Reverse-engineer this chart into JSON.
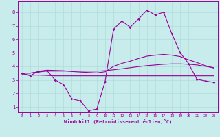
{
  "xlabel": "Windchill (Refroidissement éolien,°C)",
  "bg_color": "#c8ecec",
  "line_color": "#990099",
  "grid_color": "#b0ddd8",
  "xlim": [
    -0.5,
    23.5
  ],
  "ylim": [
    0.6,
    8.8
  ],
  "xticks": [
    0,
    1,
    2,
    3,
    4,
    5,
    6,
    7,
    8,
    9,
    10,
    11,
    12,
    13,
    14,
    15,
    16,
    17,
    18,
    19,
    20,
    21,
    22,
    23
  ],
  "yticks": [
    1,
    2,
    3,
    4,
    5,
    6,
    7,
    8
  ],
  "line_jagged_x": [
    0,
    1,
    2,
    3,
    4,
    5,
    6,
    7,
    8,
    9,
    10,
    11,
    12,
    13,
    14,
    15,
    16,
    17,
    18,
    19,
    20,
    21,
    22,
    23
  ],
  "line_jagged_y": [
    3.5,
    3.3,
    3.65,
    3.7,
    3.0,
    2.65,
    1.6,
    1.45,
    0.72,
    0.85,
    2.9,
    6.75,
    7.35,
    6.9,
    7.5,
    8.15,
    7.8,
    8.0,
    6.4,
    5.0,
    4.2,
    3.05,
    2.92,
    2.82
  ],
  "line_flat_x": [
    0,
    1,
    2,
    3,
    4,
    5,
    6,
    7,
    8,
    9,
    10,
    11,
    12,
    13,
    14,
    15,
    16,
    17,
    18,
    19,
    20,
    21,
    22,
    23
  ],
  "line_flat_y": [
    3.45,
    3.35,
    3.35,
    3.33,
    3.3,
    3.3,
    3.3,
    3.3,
    3.3,
    3.3,
    3.3,
    3.3,
    3.3,
    3.3,
    3.3,
    3.3,
    3.3,
    3.3,
    3.3,
    3.3,
    3.3,
    3.3,
    3.3,
    3.3
  ],
  "line_mid_x": [
    0,
    1,
    2,
    3,
    4,
    5,
    6,
    7,
    8,
    9,
    10,
    11,
    12,
    13,
    14,
    15,
    16,
    17,
    18,
    19,
    20,
    21,
    22,
    23
  ],
  "line_mid_y": [
    3.5,
    3.5,
    3.58,
    3.65,
    3.65,
    3.65,
    3.65,
    3.65,
    3.65,
    3.65,
    3.68,
    3.75,
    3.82,
    3.9,
    3.98,
    4.05,
    4.1,
    4.15,
    4.18,
    4.18,
    4.15,
    4.1,
    4.0,
    3.9
  ],
  "line_upper_x": [
    0,
    1,
    2,
    3,
    4,
    5,
    6,
    7,
    8,
    9,
    10,
    11,
    12,
    13,
    14,
    15,
    16,
    17,
    18,
    19,
    20,
    21,
    22,
    23
  ],
  "line_upper_y": [
    3.5,
    3.5,
    3.6,
    3.72,
    3.7,
    3.68,
    3.62,
    3.58,
    3.55,
    3.52,
    3.6,
    4.0,
    4.22,
    4.38,
    4.58,
    4.75,
    4.82,
    4.88,
    4.82,
    4.72,
    4.48,
    4.28,
    4.05,
    3.88
  ]
}
